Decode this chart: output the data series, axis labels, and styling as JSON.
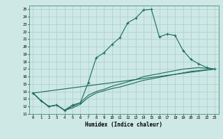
{
  "xlabel": "Humidex (Indice chaleur)",
  "xlim": [
    -0.5,
    23.5
  ],
  "ylim": [
    11,
    25.5
  ],
  "xticks": [
    0,
    1,
    2,
    3,
    4,
    5,
    6,
    7,
    8,
    9,
    10,
    11,
    12,
    13,
    14,
    15,
    16,
    17,
    18,
    19,
    20,
    21,
    22,
    23
  ],
  "yticks": [
    11,
    12,
    13,
    14,
    15,
    16,
    17,
    18,
    19,
    20,
    21,
    22,
    23,
    24,
    25
  ],
  "bg_color": "#cde8e5",
  "line_color": "#1a6b5a",
  "grid_color": "#aacfcc",
  "line1_x": [
    0,
    1,
    2,
    3,
    4,
    5,
    6,
    7,
    8,
    9,
    10,
    11,
    12,
    13,
    14,
    15,
    16,
    17,
    18,
    19,
    20,
    21,
    22,
    23
  ],
  "line1_y": [
    13.8,
    12.8,
    12.0,
    12.2,
    11.5,
    12.2,
    12.5,
    15.2,
    18.5,
    19.2,
    20.3,
    21.2,
    23.2,
    23.8,
    24.9,
    25.0,
    21.3,
    21.7,
    21.5,
    19.5,
    18.3,
    17.7,
    17.2,
    17.0
  ],
  "line2_x": [
    0,
    1,
    2,
    3,
    4,
    5,
    6,
    7,
    8,
    9,
    10,
    11,
    12,
    13,
    14,
    15,
    16,
    17,
    18,
    19,
    20,
    21,
    22,
    23
  ],
  "line2_y": [
    13.8,
    12.8,
    12.0,
    12.2,
    11.5,
    11.8,
    12.3,
    13.2,
    13.8,
    14.1,
    14.4,
    14.6,
    14.9,
    15.2,
    15.5,
    15.7,
    15.9,
    16.1,
    16.3,
    16.5,
    16.7,
    16.8,
    16.9,
    17.0
  ],
  "line3_x": [
    0,
    23
  ],
  "line3_y": [
    13.8,
    17.0
  ],
  "line4_x": [
    0,
    1,
    2,
    3,
    4,
    5,
    6,
    7,
    8,
    9,
    10,
    11,
    12,
    13,
    14,
    15,
    16,
    17,
    18,
    19,
    20,
    21,
    22,
    23
  ],
  "line4_y": [
    13.8,
    12.8,
    12.0,
    12.2,
    11.5,
    12.0,
    12.5,
    13.5,
    14.0,
    14.3,
    14.7,
    15.0,
    15.3,
    15.6,
    16.0,
    16.2,
    16.4,
    16.6,
    16.8,
    17.0,
    17.1,
    17.2,
    17.1,
    17.0
  ]
}
